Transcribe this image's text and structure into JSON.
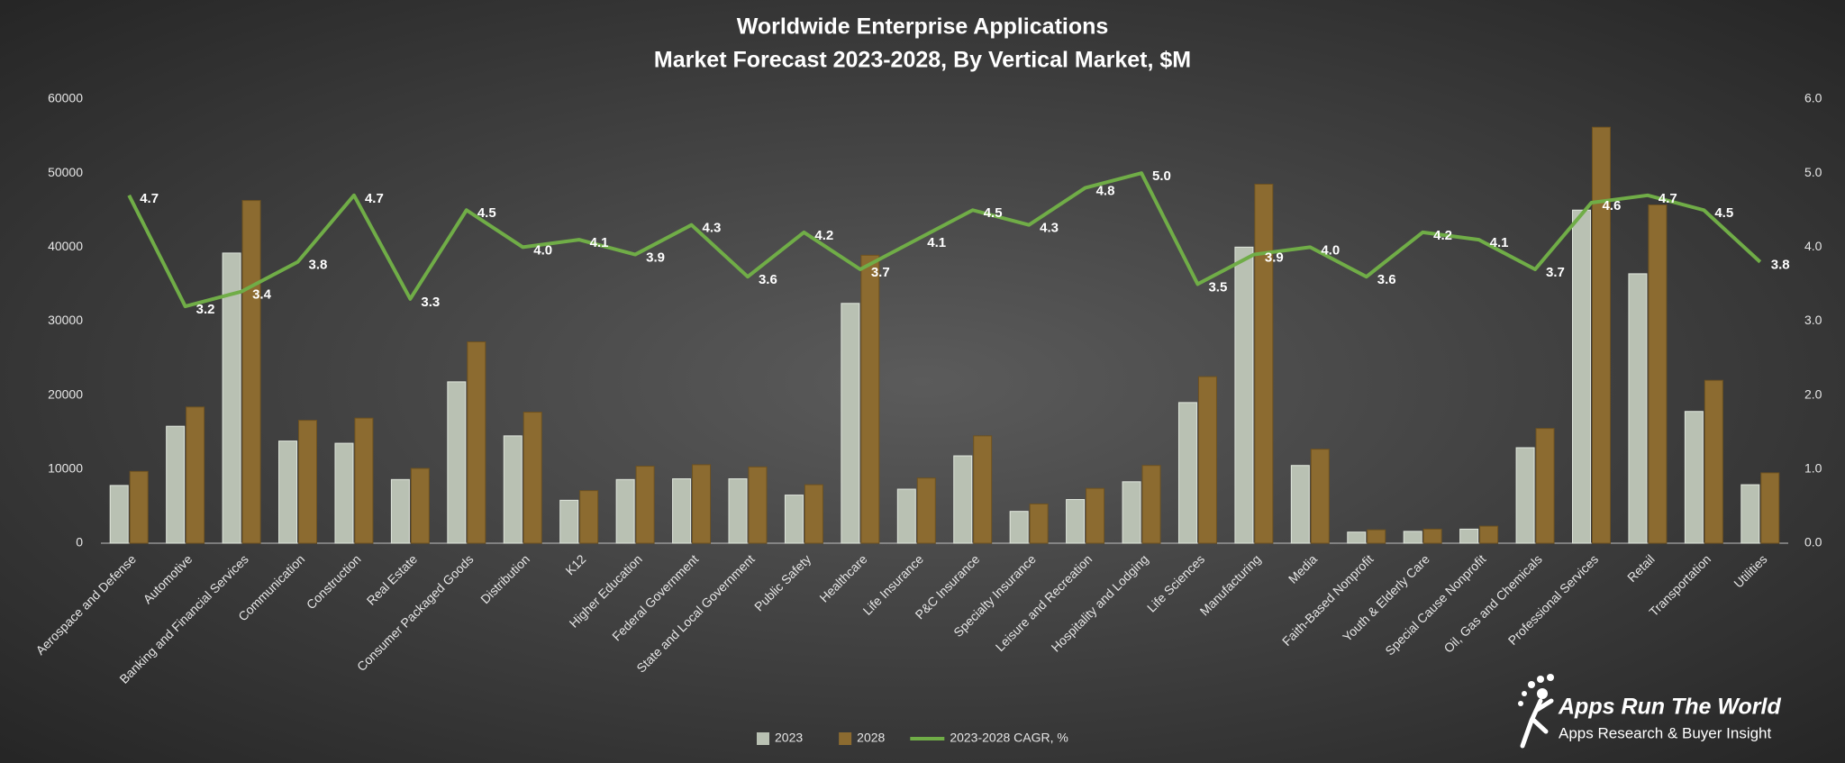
{
  "chart_data": {
    "type": "bar-line",
    "title": "Worldwide Enterprise Applications",
    "subtitle": "Market Forecast 2023-2028, By Vertical Market, $M",
    "categories": [
      "Aerospace and Defense",
      "Automotive",
      "Banking and Financial Services",
      "Communication",
      "Construction",
      "Real Estate",
      "Consumer Packaged Goods",
      "Distribution",
      "K12",
      "Higher Education",
      "Federal Government",
      "State and Local Government",
      "Public Safety",
      "Healthcare",
      "Life Insurance",
      "P&C Insurance",
      "Specialty Insurance",
      "Leisure and Recreation",
      "Hospitality and Lodging",
      "Life Sciences",
      "Manufacturing",
      "Media",
      "Faith-Based Nonprofit",
      "Youth & Elderly Care",
      "Special Cause Nonprofit",
      "Oil, Gas and Chemicals",
      "Professional Services",
      "Retail",
      "Transportation",
      "Utilities"
    ],
    "series": [
      {
        "name": "2023",
        "type": "bar",
        "color": "#b9c1b3",
        "values": [
          7800,
          15800,
          39200,
          13800,
          13500,
          8600,
          21800,
          14500,
          5800,
          8600,
          8700,
          8700,
          6500,
          32400,
          7300,
          11800,
          4300,
          5900,
          8300,
          19000,
          40000,
          10500,
          1500,
          1600,
          1900,
          12900,
          45000,
          36400,
          17800,
          7900
        ]
      },
      {
        "name": "2028",
        "type": "bar",
        "color": "#8c6b30",
        "values": [
          9700,
          18400,
          46300,
          16600,
          16900,
          10100,
          27200,
          17700,
          7100,
          10400,
          10600,
          10300,
          7900,
          38900,
          8800,
          14500,
          5300,
          7400,
          10500,
          22500,
          48500,
          12700,
          1800,
          1900,
          2300,
          15500,
          56200,
          45700,
          22000,
          9500
        ]
      },
      {
        "name": "2023-2028 CAGR, %",
        "type": "line",
        "axis": "y2",
        "color": "#70ad47",
        "values": [
          4.7,
          3.2,
          3.4,
          3.8,
          4.7,
          3.3,
          4.5,
          4.0,
          4.1,
          3.9,
          4.3,
          3.6,
          4.2,
          3.7,
          4.1,
          4.5,
          4.3,
          4.8,
          5.0,
          3.5,
          3.9,
          4.0,
          3.6,
          4.2,
          4.1,
          3.7,
          4.6,
          4.7,
          4.5,
          3.8
        ],
        "value_labels": [
          "4.7",
          "3.2",
          "3.4",
          "3.8",
          "4.7",
          "3.3",
          "4.5",
          "4.0",
          "4.1",
          "3.9",
          "4.3",
          "3.6",
          "4.2",
          "3.7",
          "4.1",
          "4.5",
          "4.3",
          "4.8",
          "5.0",
          "3.5",
          "3.9",
          "4.0",
          "3.6",
          "4.2",
          "4.1",
          "3.7",
          "4.6",
          "4.7",
          "4.5",
          "3.8"
        ]
      }
    ],
    "ylim": [
      0,
      60000
    ],
    "yticks": [
      0,
      10000,
      20000,
      30000,
      40000,
      50000,
      60000
    ],
    "y2lim": [
      0,
      6
    ],
    "y2ticks": [
      {
        "value": 0,
        "label": "0.0"
      },
      {
        "value": 1,
        "label": "1.0"
      },
      {
        "value": 2,
        "label": "2.0"
      },
      {
        "value": 3,
        "label": "3.0"
      },
      {
        "value": 4,
        "label": "4.0"
      },
      {
        "value": 5,
        "label": "5.0"
      },
      {
        "value": 6,
        "label": "6.0"
      }
    ],
    "grid": false,
    "legend": "bottom"
  },
  "logo": {
    "name": "Apps Run The World",
    "tagline": "Apps Research & Buyer Insight"
  }
}
